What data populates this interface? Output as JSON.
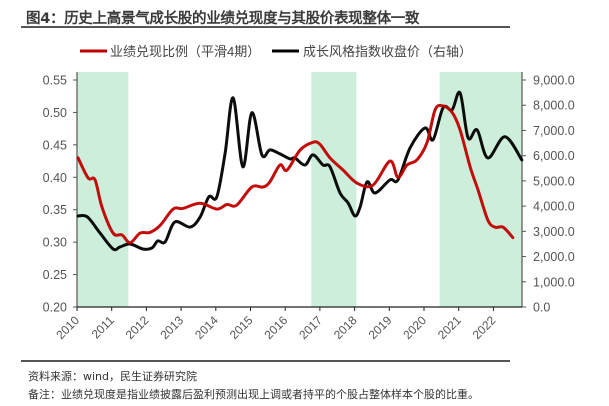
{
  "title": "图4：历史上高景气成长股的业绩兑现度与其股价表现整体一致",
  "source": "资料来源：wind，民生证券研究院",
  "note": "备注：业绩兑现度是指业绩披露后盈利预测出现上调或者持平的个股占整体样本个股的比重。",
  "chart_data": {
    "type": "line",
    "title": "图4：历史上高景气成长股的业绩兑现度与其股价表现整体一致",
    "xlabel": "",
    "x_ticks": [
      "2010",
      "2011",
      "2012",
      "2013",
      "2014",
      "2015",
      "2016",
      "2017",
      "2018",
      "2019",
      "2020",
      "2021",
      "2022"
    ],
    "xlim": [
      2010,
      2022.82
    ],
    "y_left": {
      "label": "",
      "ylim": [
        0.2,
        0.55
      ],
      "ticks": [
        "0.20",
        "0.25",
        "0.30",
        "0.35",
        "0.40",
        "0.45",
        "0.50",
        "0.55"
      ]
    },
    "y_right": {
      "label": "",
      "ylim": [
        0,
        9000
      ],
      "ticks": [
        "0.0",
        "1,000.0",
        "2,000.0",
        "3,000.0",
        "4,000.0",
        "5,000.0",
        "6,000.0",
        "7,000.0",
        "8,000.0",
        "9,000.0"
      ]
    },
    "legend_position": "top",
    "shaded_periods": [
      [
        2010.0,
        2011.48
      ],
      [
        2016.75,
        2018.05
      ],
      [
        2020.45,
        2022.82
      ]
    ],
    "shade_color": "#cdeedb",
    "series": [
      {
        "name": "业绩兑现比例（平滑4期）",
        "axis": "left",
        "color": "#c00000",
        "points": [
          [
            2010.03,
            0.43
          ],
          [
            2010.32,
            0.399
          ],
          [
            2010.52,
            0.396
          ],
          [
            2010.72,
            0.354
          ],
          [
            2011.04,
            0.314
          ],
          [
            2011.3,
            0.311
          ],
          [
            2011.53,
            0.299
          ],
          [
            2011.82,
            0.314
          ],
          [
            2012.1,
            0.315
          ],
          [
            2012.4,
            0.326
          ],
          [
            2012.77,
            0.351
          ],
          [
            2013.05,
            0.352
          ],
          [
            2013.55,
            0.36
          ],
          [
            2014.03,
            0.351
          ],
          [
            2014.32,
            0.358
          ],
          [
            2014.6,
            0.357
          ],
          [
            2015.04,
            0.385
          ],
          [
            2015.36,
            0.385
          ],
          [
            2015.56,
            0.393
          ],
          [
            2015.85,
            0.419
          ],
          [
            2016.05,
            0.411
          ],
          [
            2016.43,
            0.442
          ],
          [
            2016.8,
            0.454
          ],
          [
            2017.0,
            0.451
          ],
          [
            2017.29,
            0.43
          ],
          [
            2017.67,
            0.411
          ],
          [
            2018.07,
            0.391
          ],
          [
            2018.53,
            0.388
          ],
          [
            2019.02,
            0.425
          ],
          [
            2019.25,
            0.4
          ],
          [
            2019.51,
            0.419
          ],
          [
            2019.8,
            0.427
          ],
          [
            2020.09,
            0.454
          ],
          [
            2020.32,
            0.504
          ],
          [
            2020.55,
            0.51
          ],
          [
            2020.81,
            0.5
          ],
          [
            2021.04,
            0.473
          ],
          [
            2021.33,
            0.416
          ],
          [
            2021.56,
            0.38
          ],
          [
            2021.84,
            0.334
          ],
          [
            2022.05,
            0.323
          ],
          [
            2022.28,
            0.323
          ],
          [
            2022.56,
            0.307
          ]
        ]
      },
      {
        "name": "成长风格指数收盘价（右轴）",
        "axis": "right",
        "color": "#000000",
        "points": [
          [
            2010.03,
            3610
          ],
          [
            2010.3,
            3570
          ],
          [
            2010.66,
            2940
          ],
          [
            2011.04,
            2300
          ],
          [
            2011.24,
            2380
          ],
          [
            2011.53,
            2500
          ],
          [
            2011.9,
            2300
          ],
          [
            2012.16,
            2340
          ],
          [
            2012.33,
            2620
          ],
          [
            2012.54,
            2580
          ],
          [
            2012.82,
            3370
          ],
          [
            2013.26,
            3170
          ],
          [
            2013.55,
            3570
          ],
          [
            2013.8,
            4370
          ],
          [
            2014.03,
            4370
          ],
          [
            2014.27,
            6110
          ],
          [
            2014.5,
            8290
          ],
          [
            2014.78,
            5560
          ],
          [
            2015.04,
            7700
          ],
          [
            2015.33,
            6030
          ],
          [
            2015.56,
            6230
          ],
          [
            2015.85,
            6070
          ],
          [
            2016.14,
            5870
          ],
          [
            2016.28,
            5910
          ],
          [
            2016.57,
            5630
          ],
          [
            2016.8,
            6030
          ],
          [
            2017.09,
            5630
          ],
          [
            2017.29,
            5560
          ],
          [
            2017.58,
            4520
          ],
          [
            2017.81,
            4130
          ],
          [
            2018.01,
            3610
          ],
          [
            2018.16,
            3970
          ],
          [
            2018.36,
            4960
          ],
          [
            2018.59,
            4520
          ],
          [
            2019.02,
            5040
          ],
          [
            2019.25,
            5040
          ],
          [
            2019.6,
            6310
          ],
          [
            2020.03,
            7100
          ],
          [
            2020.26,
            6630
          ],
          [
            2020.55,
            7900
          ],
          [
            2020.81,
            7820
          ],
          [
            2021.04,
            8490
          ],
          [
            2021.27,
            6710
          ],
          [
            2021.53,
            7020
          ],
          [
            2021.84,
            5910
          ],
          [
            2022.33,
            6750
          ],
          [
            2022.82,
            5830
          ]
        ]
      }
    ]
  }
}
